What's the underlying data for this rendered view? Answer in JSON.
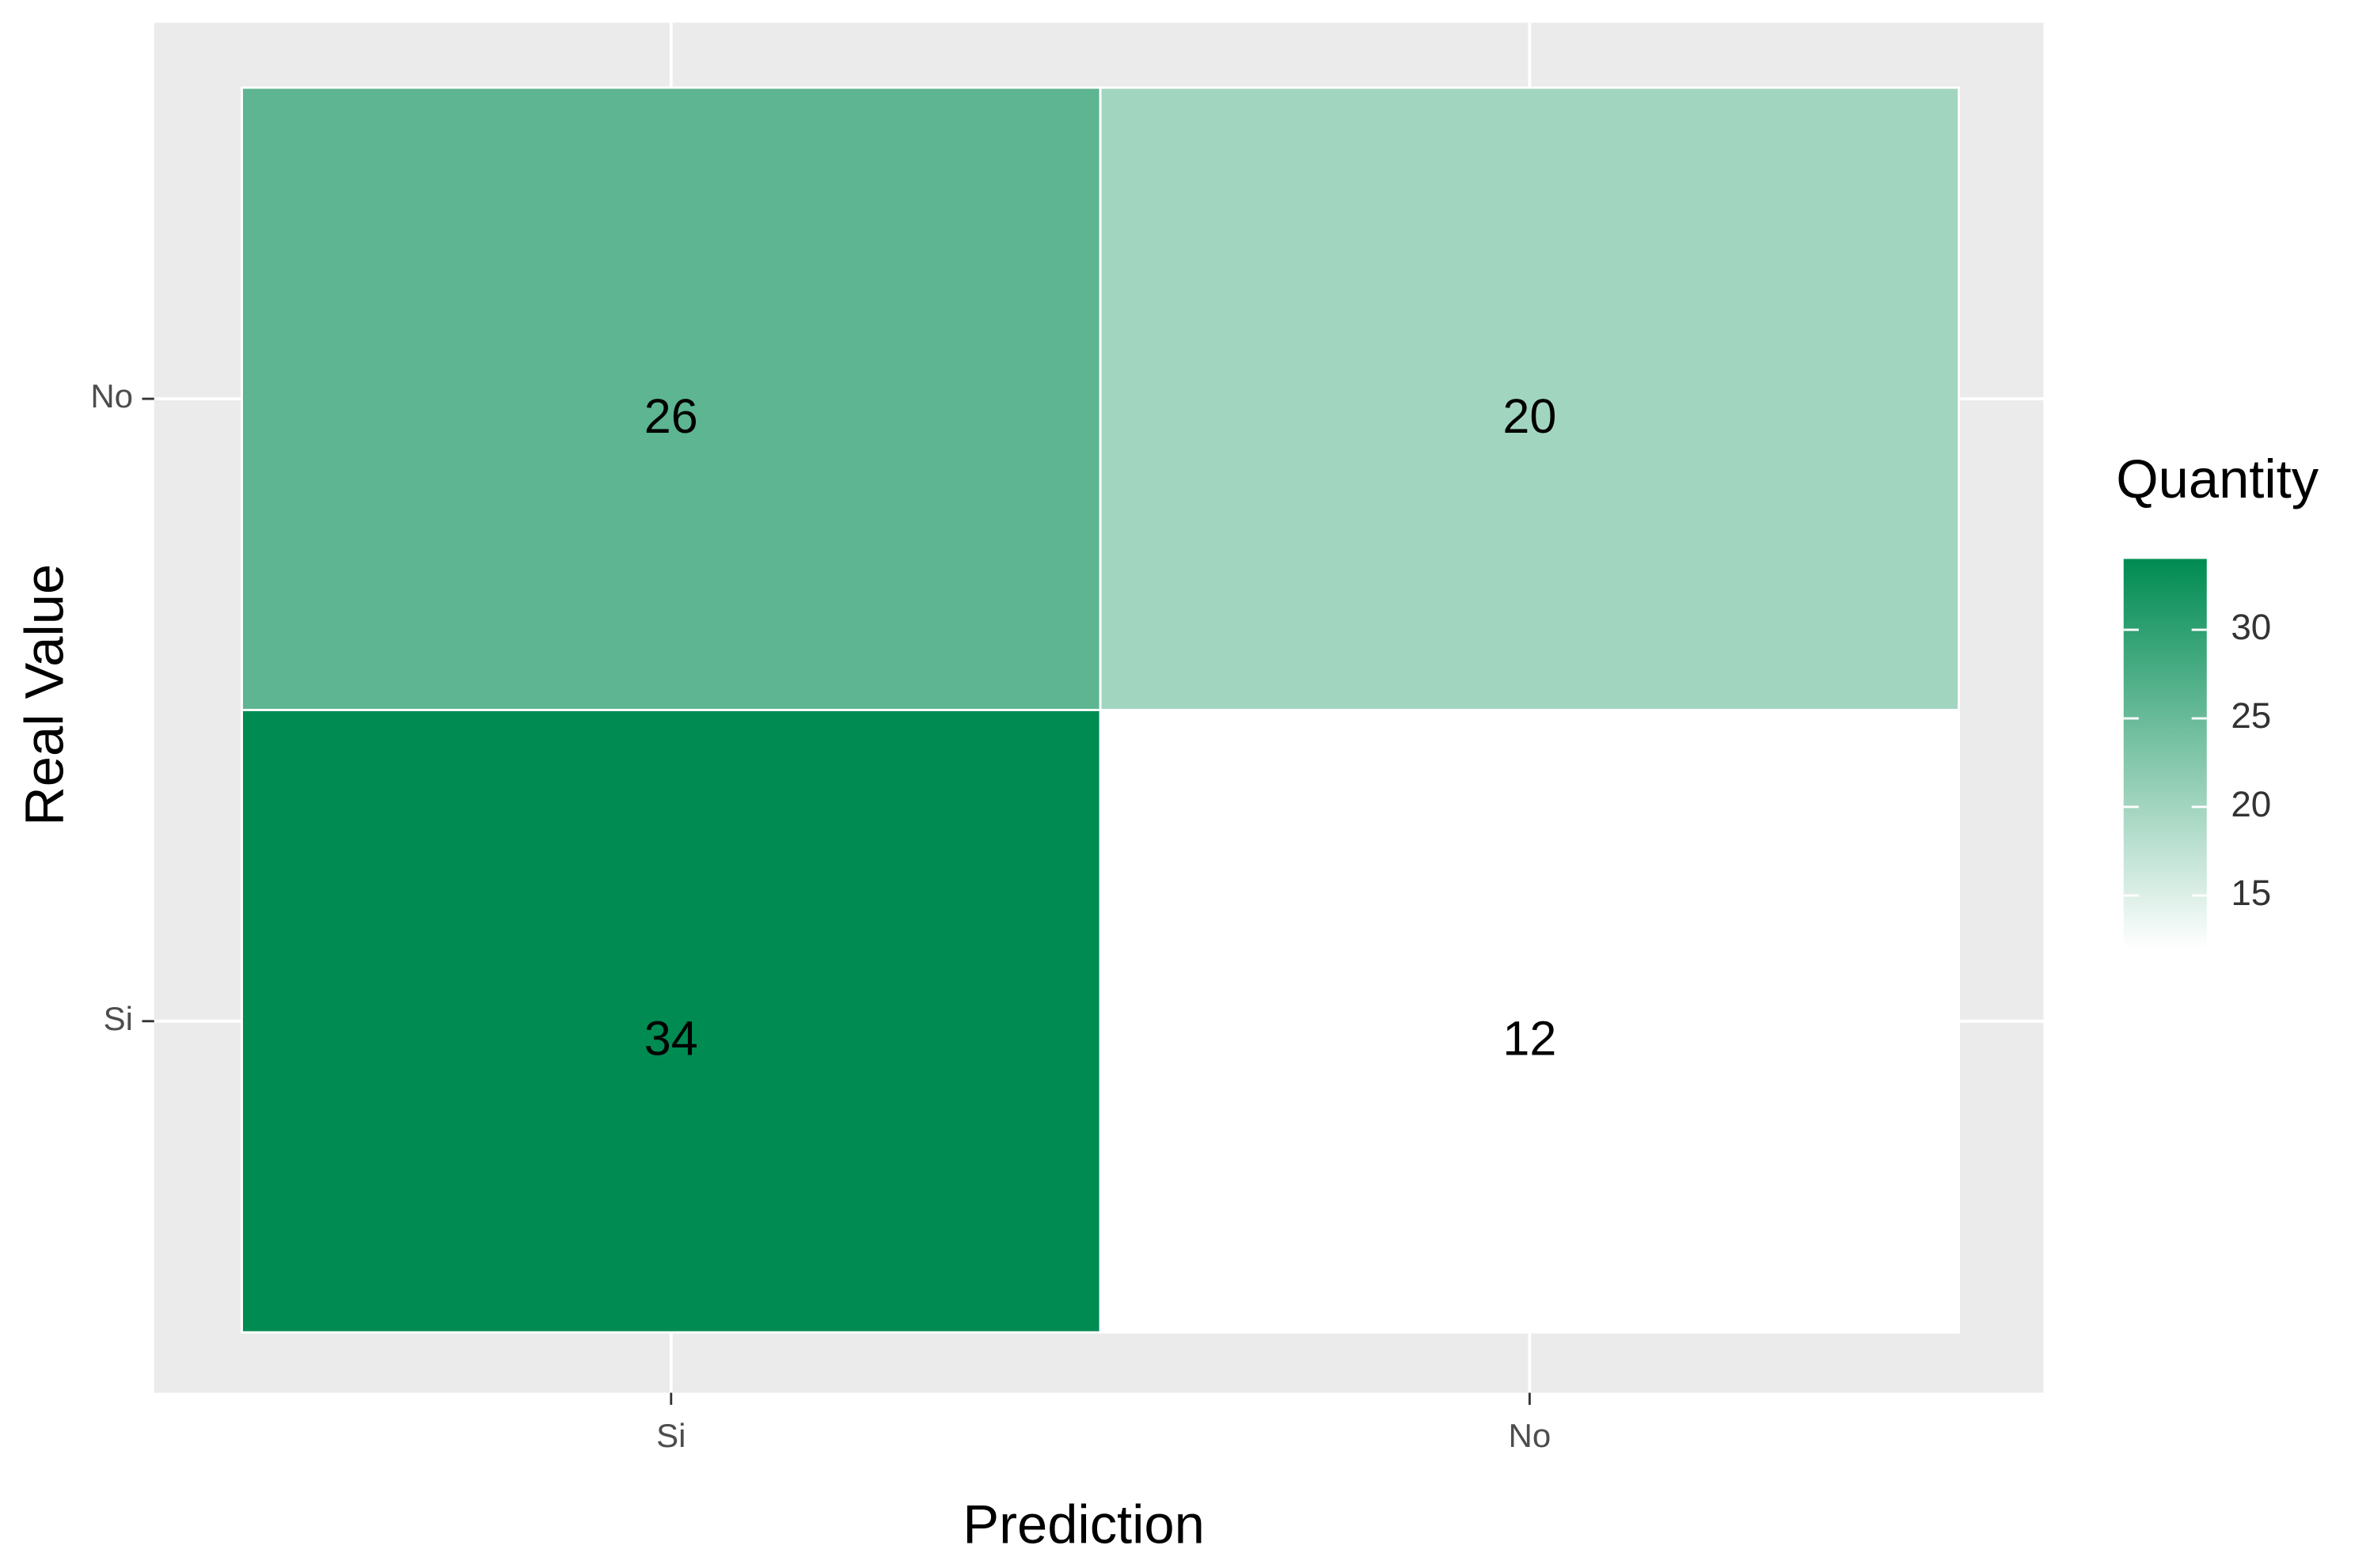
{
  "chart_data": {
    "type": "heatmap",
    "xlabel": "Prediction",
    "ylabel": "Real Value",
    "x_categories": [
      "Si",
      "No"
    ],
    "y_categories": [
      "No",
      "Si"
    ],
    "values": [
      [
        26,
        20
      ],
      [
        34,
        12
      ]
    ],
    "colorbar": {
      "title": "Quantity",
      "lim": [
        12,
        34
      ],
      "ticks": [
        15,
        20,
        25,
        30
      ],
      "low_color": "#ffffff",
      "high_color": "#008b52"
    },
    "grid": true
  }
}
